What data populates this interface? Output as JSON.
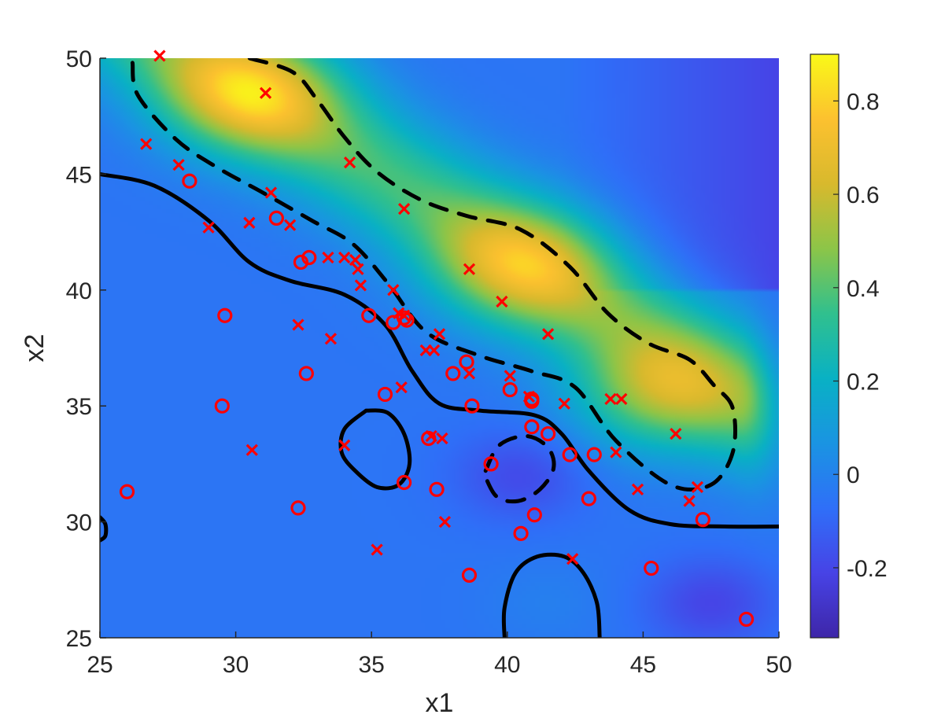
{
  "chart_data": {
    "type": "heatmap",
    "title": "",
    "xlabel": "x1",
    "ylabel": "x2",
    "xlim": [
      25,
      50
    ],
    "ylim": [
      25,
      50
    ],
    "xticks": [
      "25",
      "30",
      "35",
      "40",
      "45",
      "50"
    ],
    "yticks": [
      "25",
      "30",
      "35",
      "40",
      "45",
      "50"
    ],
    "colorbar": {
      "colormap": "parula",
      "range": [
        -0.35,
        0.9
      ],
      "ticks": [
        "-0.2",
        "0",
        "0.2",
        "0.4",
        "0.6",
        "0.8"
      ],
      "colors": [
        "#3e26a8",
        "#4743e6",
        "#2f6ff8",
        "#1a94e2",
        "#09b1c4",
        "#30c08e",
        "#8cc548",
        "#d8b92d",
        "#fcc12f",
        "#f9f918"
      ]
    },
    "surface_peaks": [
      {
        "x": 30.5,
        "y": 48.5,
        "value": 0.88
      },
      {
        "x": 40.5,
        "y": 41.0,
        "value": 0.75
      },
      {
        "x": 45.5,
        "y": 35.5,
        "value": 0.7
      },
      {
        "x": 40.5,
        "y": 32.0,
        "value": -0.3
      },
      {
        "x": 47.5,
        "y": 26.5,
        "value": -0.33
      },
      {
        "x": 41.5,
        "y": 26.5,
        "value": 0.02
      }
    ],
    "contours": [
      {
        "level": 0,
        "style": "solid",
        "x": [
          25,
          27,
          29,
          30.5,
          32,
          34,
          35.5,
          36.5,
          37.5,
          39,
          41,
          42,
          43,
          44.5,
          46,
          48,
          50
        ],
        "y": [
          45,
          44.5,
          43,
          41.2,
          40.4,
          39.8,
          38.5,
          36.5,
          35.1,
          34.8,
          34.6,
          33.8,
          32.2,
          30.5,
          29.9,
          29.8,
          29.8
        ]
      },
      {
        "level": 0,
        "style": "solid",
        "x": [
          34.8,
          35.6,
          36.2,
          36.4,
          36.0,
          35.2,
          34.4,
          33.9,
          34.0,
          34.8
        ],
        "y": [
          34.8,
          34.7,
          33.8,
          32.5,
          31.6,
          31.5,
          32.2,
          33.0,
          34.0,
          34.8
        ]
      },
      {
        "level": 0,
        "style": "solid",
        "x": [
          39.9,
          39.9,
          40.3,
          41.1,
          42.1,
          42.8,
          43.3,
          43.4
        ],
        "y": [
          25,
          26.3,
          27.8,
          28.5,
          28.5,
          27.8,
          26.5,
          25
        ]
      },
      {
        "level": 0,
        "style": "solid",
        "x": [
          25,
          25.2,
          25.2,
          25
        ],
        "y": [
          30.2,
          29.9,
          29.4,
          29.2
        ]
      },
      {
        "level": 0.5,
        "style": "dashed",
        "x": [
          26.2,
          26.4,
          27.8,
          29.3,
          31,
          32.8,
          34.3,
          35.6,
          37,
          38.9,
          40.9,
          42.5,
          44,
          46,
          47.5,
          48.3,
          48.3,
          47.6,
          46.7,
          45.2,
          43.7,
          42.3,
          40.5,
          38.5,
          36.8,
          35.2,
          34,
          33,
          32.1,
          30.5
        ],
        "y": [
          49.8,
          48.4,
          46.5,
          45.3,
          44.2,
          43.0,
          42.0,
          40.3,
          38.2,
          37.2,
          36.5,
          35.8,
          33.5,
          31.6,
          31.6,
          33.0,
          34.9,
          35.9,
          37.0,
          37.7,
          39.0,
          41.0,
          42.6,
          43.2,
          43.9,
          45.1,
          46.6,
          48.2,
          49.4,
          50
        ]
      },
      {
        "level": -0.25,
        "style": "dashed",
        "x": [
          39.2,
          39.7,
          40.7,
          41.5,
          41.7,
          41.2,
          40.4,
          39.6,
          39.1
        ],
        "y": [
          32.2,
          33.3,
          33.7,
          33.2,
          32.3,
          31.4,
          30.9,
          31.1,
          32.2
        ]
      }
    ],
    "series": [
      {
        "marker": "x",
        "color": "#ff0000",
        "points": [
          [
            27.2,
            50.1
          ],
          [
            31.1,
            48.5
          ],
          [
            26.7,
            46.3
          ],
          [
            27.9,
            45.4
          ],
          [
            34.2,
            45.5
          ],
          [
            31.3,
            44.2
          ],
          [
            36.2,
            43.5
          ],
          [
            29.0,
            42.7
          ],
          [
            30.5,
            42.9
          ],
          [
            32.0,
            42.8
          ],
          [
            33.4,
            41.4
          ],
          [
            34.0,
            41.4
          ],
          [
            34.4,
            41.3
          ],
          [
            34.5,
            40.9
          ],
          [
            34.6,
            40.2
          ],
          [
            38.6,
            40.9
          ],
          [
            35.8,
            40.0
          ],
          [
            39.8,
            39.5
          ],
          [
            36.0,
            39.0
          ],
          [
            36.2,
            38.9
          ],
          [
            37.5,
            38.1
          ],
          [
            33.5,
            37.9
          ],
          [
            41.5,
            38.1
          ],
          [
            32.3,
            38.5
          ],
          [
            37.0,
            37.4
          ],
          [
            37.3,
            37.4
          ],
          [
            38.6,
            36.4
          ],
          [
            40.1,
            36.3
          ],
          [
            36.1,
            35.8
          ],
          [
            40.8,
            35.4
          ],
          [
            42.1,
            35.1
          ],
          [
            43.8,
            35.3
          ],
          [
            44.2,
            35.3
          ],
          [
            37.2,
            33.7
          ],
          [
            37.6,
            33.6
          ],
          [
            34.0,
            33.3
          ],
          [
            30.6,
            33.1
          ],
          [
            44.0,
            33.0
          ],
          [
            46.2,
            33.8
          ],
          [
            44.8,
            31.4
          ],
          [
            47.0,
            31.5
          ],
          [
            46.7,
            30.9
          ],
          [
            37.7,
            30.0
          ],
          [
            35.2,
            28.8
          ],
          [
            42.4,
            28.4
          ]
        ]
      },
      {
        "marker": "o",
        "color": "#ff0000",
        "points": [
          [
            28.3,
            44.7
          ],
          [
            31.5,
            43.1
          ],
          [
            32.4,
            41.2
          ],
          [
            32.7,
            41.4
          ],
          [
            29.6,
            38.9
          ],
          [
            34.9,
            38.9
          ],
          [
            35.8,
            38.6
          ],
          [
            36.2,
            38.8
          ],
          [
            36.3,
            38.7
          ],
          [
            38.5,
            36.9
          ],
          [
            38.0,
            36.4
          ],
          [
            32.6,
            36.4
          ],
          [
            40.1,
            35.7
          ],
          [
            35.5,
            35.5
          ],
          [
            40.9,
            35.2
          ],
          [
            40.9,
            35.3
          ],
          [
            38.7,
            35.0
          ],
          [
            29.5,
            35.0
          ],
          [
            40.9,
            34.1
          ],
          [
            41.5,
            33.8
          ],
          [
            37.1,
            33.6
          ],
          [
            42.3,
            32.9
          ],
          [
            43.2,
            32.9
          ],
          [
            39.4,
            32.5
          ],
          [
            26.0,
            31.3
          ],
          [
            36.2,
            31.7
          ],
          [
            37.4,
            31.4
          ],
          [
            43.0,
            31.0
          ],
          [
            32.3,
            30.6
          ],
          [
            41.0,
            30.3
          ],
          [
            47.2,
            30.1
          ],
          [
            40.5,
            29.5
          ],
          [
            45.3,
            28.0
          ],
          [
            38.6,
            27.7
          ],
          [
            48.8,
            25.8
          ]
        ]
      }
    ]
  }
}
